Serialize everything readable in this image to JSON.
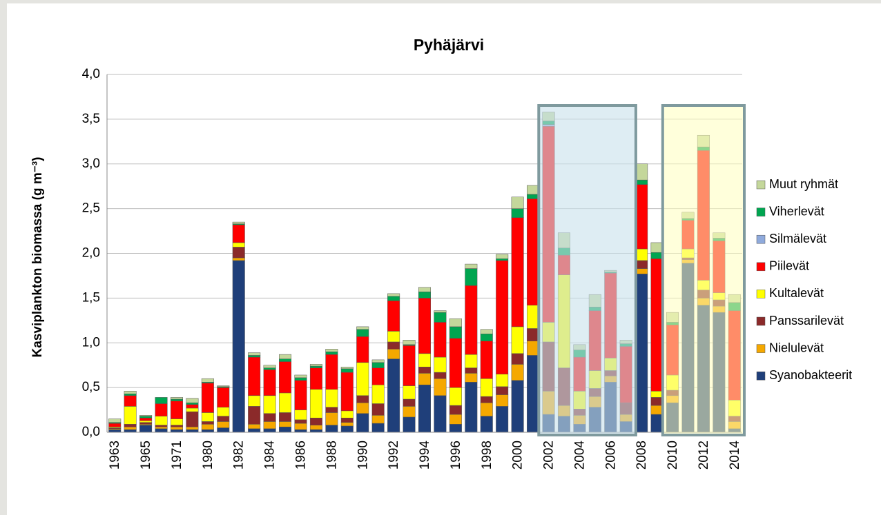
{
  "chart_data": {
    "type": "stacked-bar",
    "title": "Pyhäjärvi",
    "y_label": "Kasviplankton biomassa (g m⁻³)",
    "categories": [
      "1963",
      null,
      "1965",
      null,
      "1971",
      null,
      "1980",
      null,
      "1982",
      null,
      "1984",
      null,
      "1986",
      null,
      "1988",
      null,
      "1990",
      null,
      "1992",
      null,
      "1994",
      null,
      "1996",
      null,
      "1998",
      null,
      "2000",
      null,
      "2002",
      null,
      "2004",
      null,
      "2006",
      null,
      "2008",
      null,
      "2010",
      null,
      "2012",
      null,
      "2014"
    ],
    "ylim": [
      0,
      4
    ],
    "yticks": [
      {
        "value": 0,
        "label": "0,0"
      },
      {
        "value": 0.5,
        "label": "0,5"
      },
      {
        "value": 1,
        "label": "1,0"
      },
      {
        "value": 1.5,
        "label": "1,5"
      },
      {
        "value": 2,
        "label": "2,0"
      },
      {
        "value": 2.5,
        "label": "2,5"
      },
      {
        "value": 3,
        "label": "3,0"
      },
      {
        "value": 3.5,
        "label": "3,5"
      },
      {
        "value": 4,
        "label": "4,0"
      }
    ],
    "grid": true,
    "legend": "right",
    "series": [
      {
        "name": "Syanobakteerit",
        "color": "#1f3f7a",
        "values": [
          0.03,
          0.03,
          0.08,
          0.04,
          0.03,
          0.03,
          0.03,
          0.05,
          1.92,
          0.04,
          0.04,
          0.06,
          0.03,
          0.03,
          0.08,
          0.07,
          0.21,
          0.1,
          0.82,
          0.17,
          0.53,
          0.41,
          0.09,
          0.56,
          0.18,
          0.29,
          0.58,
          0.86,
          0.2,
          0.18,
          0.09,
          0.28,
          0.56,
          0.12,
          1.77,
          0.2,
          0.33,
          1.89,
          1.42,
          1.34,
          0.04
        ]
      },
      {
        "name": "Nielulevät",
        "color": "#f5a800",
        "values": [
          0.01,
          0.03,
          0.01,
          0.02,
          0.03,
          0.03,
          0.06,
          0.07,
          0.03,
          0.05,
          0.08,
          0.06,
          0.07,
          0.05,
          0.14,
          0.04,
          0.12,
          0.09,
          0.11,
          0.12,
          0.13,
          0.19,
          0.11,
          0.1,
          0.15,
          0.13,
          0.18,
          0.16,
          0.26,
          0.12,
          0.1,
          0.12,
          0.07,
          0.08,
          0.06,
          0.1,
          0.08,
          0.04,
          0.08,
          0.07,
          0.08
        ]
      },
      {
        "name": "Panssarilevät",
        "color": "#8b2a2a",
        "values": [
          0.01,
          0.03,
          0.02,
          0.02,
          0.02,
          0.17,
          0.03,
          0.06,
          0.12,
          0.2,
          0.09,
          0.1,
          0.04,
          0.08,
          0.06,
          0.05,
          0.08,
          0.13,
          0.08,
          0.08,
          0.07,
          0.07,
          0.1,
          0.06,
          0.07,
          0.09,
          0.12,
          0.14,
          0.55,
          0.42,
          0.07,
          0.09,
          0.06,
          0.13,
          0.09,
          0.09,
          0.06,
          0.02,
          0.09,
          0.07,
          0.06
        ]
      },
      {
        "name": "Kultalevät",
        "color": "#ffff00",
        "values": [
          0.01,
          0.2,
          0.02,
          0.1,
          0.07,
          0.04,
          0.1,
          0.1,
          0.05,
          0.12,
          0.2,
          0.22,
          0.11,
          0.32,
          0.2,
          0.08,
          0.37,
          0.21,
          0.12,
          0.15,
          0.15,
          0.17,
          0.2,
          0.15,
          0.2,
          0.14,
          0.3,
          0.26,
          0.22,
          1.04,
          0.2,
          0.2,
          0.14,
          0,
          0.13,
          0.07,
          0.17,
          0.1,
          0.11,
          0.08,
          0.18
        ]
      },
      {
        "name": "Piilevät",
        "color": "#ff0000",
        "values": [
          0.04,
          0.12,
          0.03,
          0.14,
          0.2,
          0.04,
          0.33,
          0.22,
          0.2,
          0.43,
          0.29,
          0.35,
          0.33,
          0.24,
          0.39,
          0.43,
          0.29,
          0.19,
          0.34,
          0.45,
          0.62,
          0.39,
          0.55,
          0.77,
          0.42,
          1.27,
          1.22,
          1.19,
          2.19,
          0.22,
          0.38,
          0.67,
          0.95,
          0.63,
          0.72,
          1.48,
          0.56,
          0.32,
          1.45,
          0.58,
          1.0
        ]
      },
      {
        "name": "Silmälevät",
        "color": "#8faadc",
        "values": [
          0,
          0,
          0,
          0,
          0,
          0,
          0,
          0,
          0,
          0,
          0,
          0,
          0,
          0,
          0,
          0,
          0,
          0,
          0,
          0,
          0,
          0,
          0,
          0,
          0,
          0,
          0,
          0,
          0.02,
          0,
          0,
          0,
          0,
          0,
          0,
          0,
          0,
          0,
          0,
          0,
          0
        ]
      },
      {
        "name": "Viherlevät",
        "color": "#00a550",
        "values": [
          0.01,
          0.02,
          0.02,
          0.07,
          0.02,
          0.02,
          0.01,
          0.01,
          0.01,
          0.02,
          0.02,
          0.03,
          0.03,
          0.02,
          0.03,
          0.04,
          0.08,
          0.06,
          0.05,
          0.01,
          0.07,
          0.11,
          0.13,
          0.19,
          0.08,
          0.02,
          0.1,
          0.05,
          0.04,
          0.08,
          0.08,
          0.04,
          0.01,
          0.03,
          0.05,
          0.07,
          0.03,
          0.02,
          0.04,
          0.03,
          0.09
        ]
      },
      {
        "name": "Muut ryhmät",
        "color": "#c4d79b",
        "values": [
          0.04,
          0.03,
          0.01,
          0,
          0.02,
          0.05,
          0.04,
          0.01,
          0.02,
          0.03,
          0.03,
          0.05,
          0.03,
          0.02,
          0.03,
          0.02,
          0.03,
          0.03,
          0.03,
          0.05,
          0.05,
          0.02,
          0.09,
          0.05,
          0.05,
          0.05,
          0.13,
          0.1,
          0.1,
          0.17,
          0.06,
          0.14,
          0.02,
          0.04,
          0.18,
          0.11,
          0.11,
          0.07,
          0.13,
          0.06,
          0.09
        ]
      }
    ]
  }
}
